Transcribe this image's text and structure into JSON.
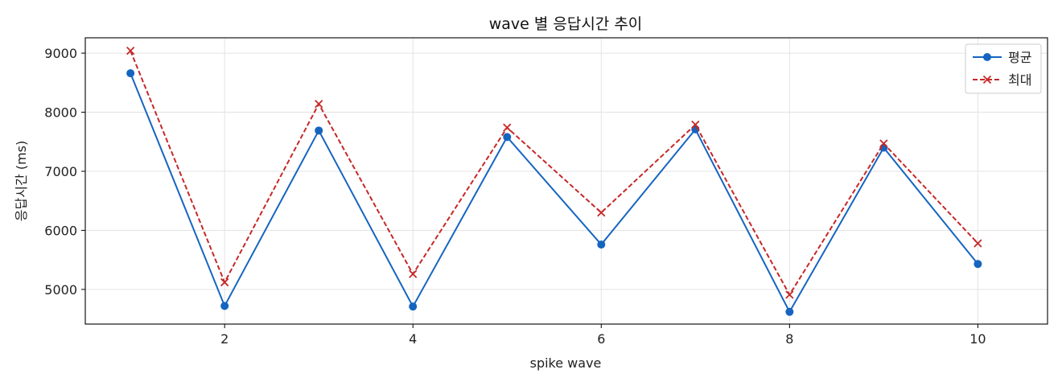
{
  "chart_data": {
    "type": "line",
    "title": "wave 별 응답시간 추이",
    "xlabel": "spike wave",
    "ylabel": "응답시간 (ms)",
    "x": [
      1,
      2,
      3,
      4,
      5,
      6,
      7,
      8,
      9,
      10
    ],
    "xlim": [
      0.52,
      10.74
    ],
    "ylim": [
      4413,
      9260
    ],
    "xticks": [
      2,
      4,
      6,
      8,
      10
    ],
    "yticks": [
      5000,
      6000,
      7000,
      8000,
      9000
    ],
    "grid": true,
    "legend_position": "top-right",
    "series": [
      {
        "name": "평균",
        "values": [
          8660,
          4720,
          7690,
          4710,
          7580,
          5760,
          7710,
          4620,
          7400,
          5430
        ],
        "color": "#1565c0",
        "line_style": "solid",
        "marker": "circle"
      },
      {
        "name": "최대",
        "values": [
          9040,
          5120,
          8140,
          5260,
          7740,
          6300,
          7790,
          4910,
          7470,
          5780
        ],
        "color": "#c62828",
        "line_style": "dashed",
        "marker": "x"
      }
    ]
  }
}
